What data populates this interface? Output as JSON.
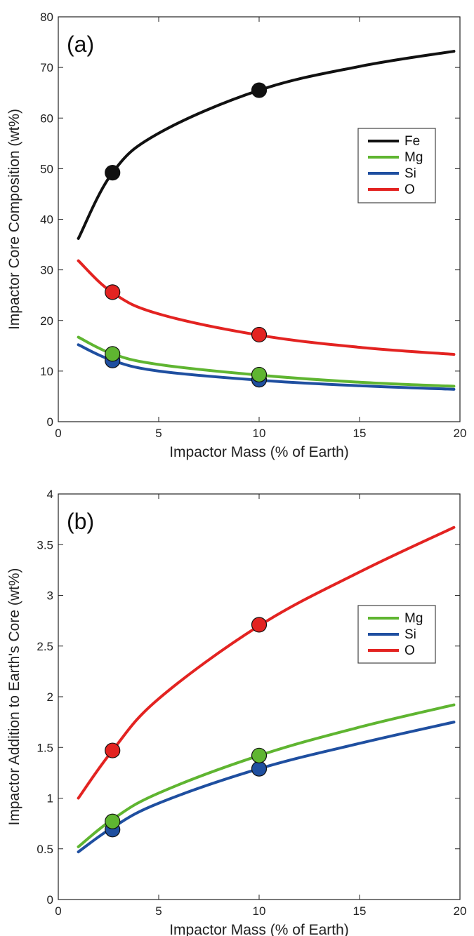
{
  "chart_data": [
    {
      "type": "line",
      "panel_label": "(a)",
      "xlabel": "Impactor Mass (% of Earth)",
      "ylabel": "Impactor Core Composition (wt%)",
      "xlim": [
        0,
        20
      ],
      "ylim": [
        0,
        80
      ],
      "xticks": [
        "0",
        "5",
        "10",
        "15",
        "20"
      ],
      "yticks": [
        "0",
        "10",
        "20",
        "30",
        "40",
        "50",
        "60",
        "70",
        "80"
      ],
      "legend_position": "right",
      "series": [
        {
          "name": "Fe",
          "color": "#111111",
          "x": [
            1,
            2.7,
            5,
            10,
            15,
            19.7
          ],
          "y": [
            36.2,
            49.2,
            57,
            65.5,
            70.2,
            73.2
          ],
          "markers_x": [
            2.7,
            10
          ],
          "markers_y": [
            49.2,
            65.5
          ]
        },
        {
          "name": "Mg",
          "color": "#5fb531",
          "x": [
            1,
            2.7,
            5,
            10,
            15,
            19.7
          ],
          "y": [
            16.7,
            13.4,
            11.3,
            9.2,
            7.8,
            7.0
          ],
          "markers_x": [
            2.7,
            10
          ],
          "markers_y": [
            13.4,
            9.3
          ]
        },
        {
          "name": "Si",
          "color": "#1f4fa0",
          "x": [
            1,
            2.7,
            5,
            10,
            15,
            19.7
          ],
          "y": [
            15.2,
            12.1,
            10.0,
            8.2,
            7.1,
            6.4
          ],
          "markers_x": [
            2.7,
            10
          ],
          "markers_y": [
            12.1,
            8.3
          ]
        },
        {
          "name": "O",
          "color": "#e32321",
          "x": [
            1,
            2.7,
            5,
            10,
            15,
            19.7
          ],
          "y": [
            31.8,
            25.5,
            21.3,
            17.1,
            14.7,
            13.3
          ],
          "markers_x": [
            2.7,
            10
          ],
          "markers_y": [
            25.6,
            17.2
          ]
        }
      ]
    },
    {
      "type": "line",
      "panel_label": "(b)",
      "xlabel": "Impactor Mass (% of Earth)",
      "ylabel": "Impactor Addition to Earth's Core (wt%)",
      "xlim": [
        0,
        20
      ],
      "ylim": [
        0,
        4
      ],
      "xticks": [
        "0",
        "5",
        "10",
        "15",
        "20"
      ],
      "yticks": [
        "0",
        "0.5",
        "1",
        "1.5",
        "2",
        "2.5",
        "3",
        "3.5",
        "4"
      ],
      "legend_position": "right",
      "series": [
        {
          "name": "Mg",
          "color": "#5fb531",
          "x": [
            1,
            2.7,
            5,
            10,
            15,
            19.7
          ],
          "y": [
            0.52,
            0.79,
            1.05,
            1.42,
            1.7,
            1.92
          ],
          "markers_x": [
            2.7,
            10
          ],
          "markers_y": [
            0.77,
            1.42
          ]
        },
        {
          "name": "Si",
          "color": "#1f4fa0",
          "x": [
            1,
            2.7,
            5,
            10,
            15,
            19.7
          ],
          "y": [
            0.47,
            0.71,
            0.95,
            1.29,
            1.54,
            1.75
          ],
          "markers_x": [
            2.7,
            10
          ],
          "markers_y": [
            0.69,
            1.29
          ]
        },
        {
          "name": "O",
          "color": "#e32321",
          "x": [
            1,
            2.7,
            5,
            10,
            15,
            19.7
          ],
          "y": [
            1.0,
            1.47,
            1.98,
            2.7,
            3.23,
            3.67
          ],
          "markers_x": [
            2.7,
            10
          ],
          "markers_y": [
            1.47,
            2.71
          ]
        }
      ]
    }
  ]
}
